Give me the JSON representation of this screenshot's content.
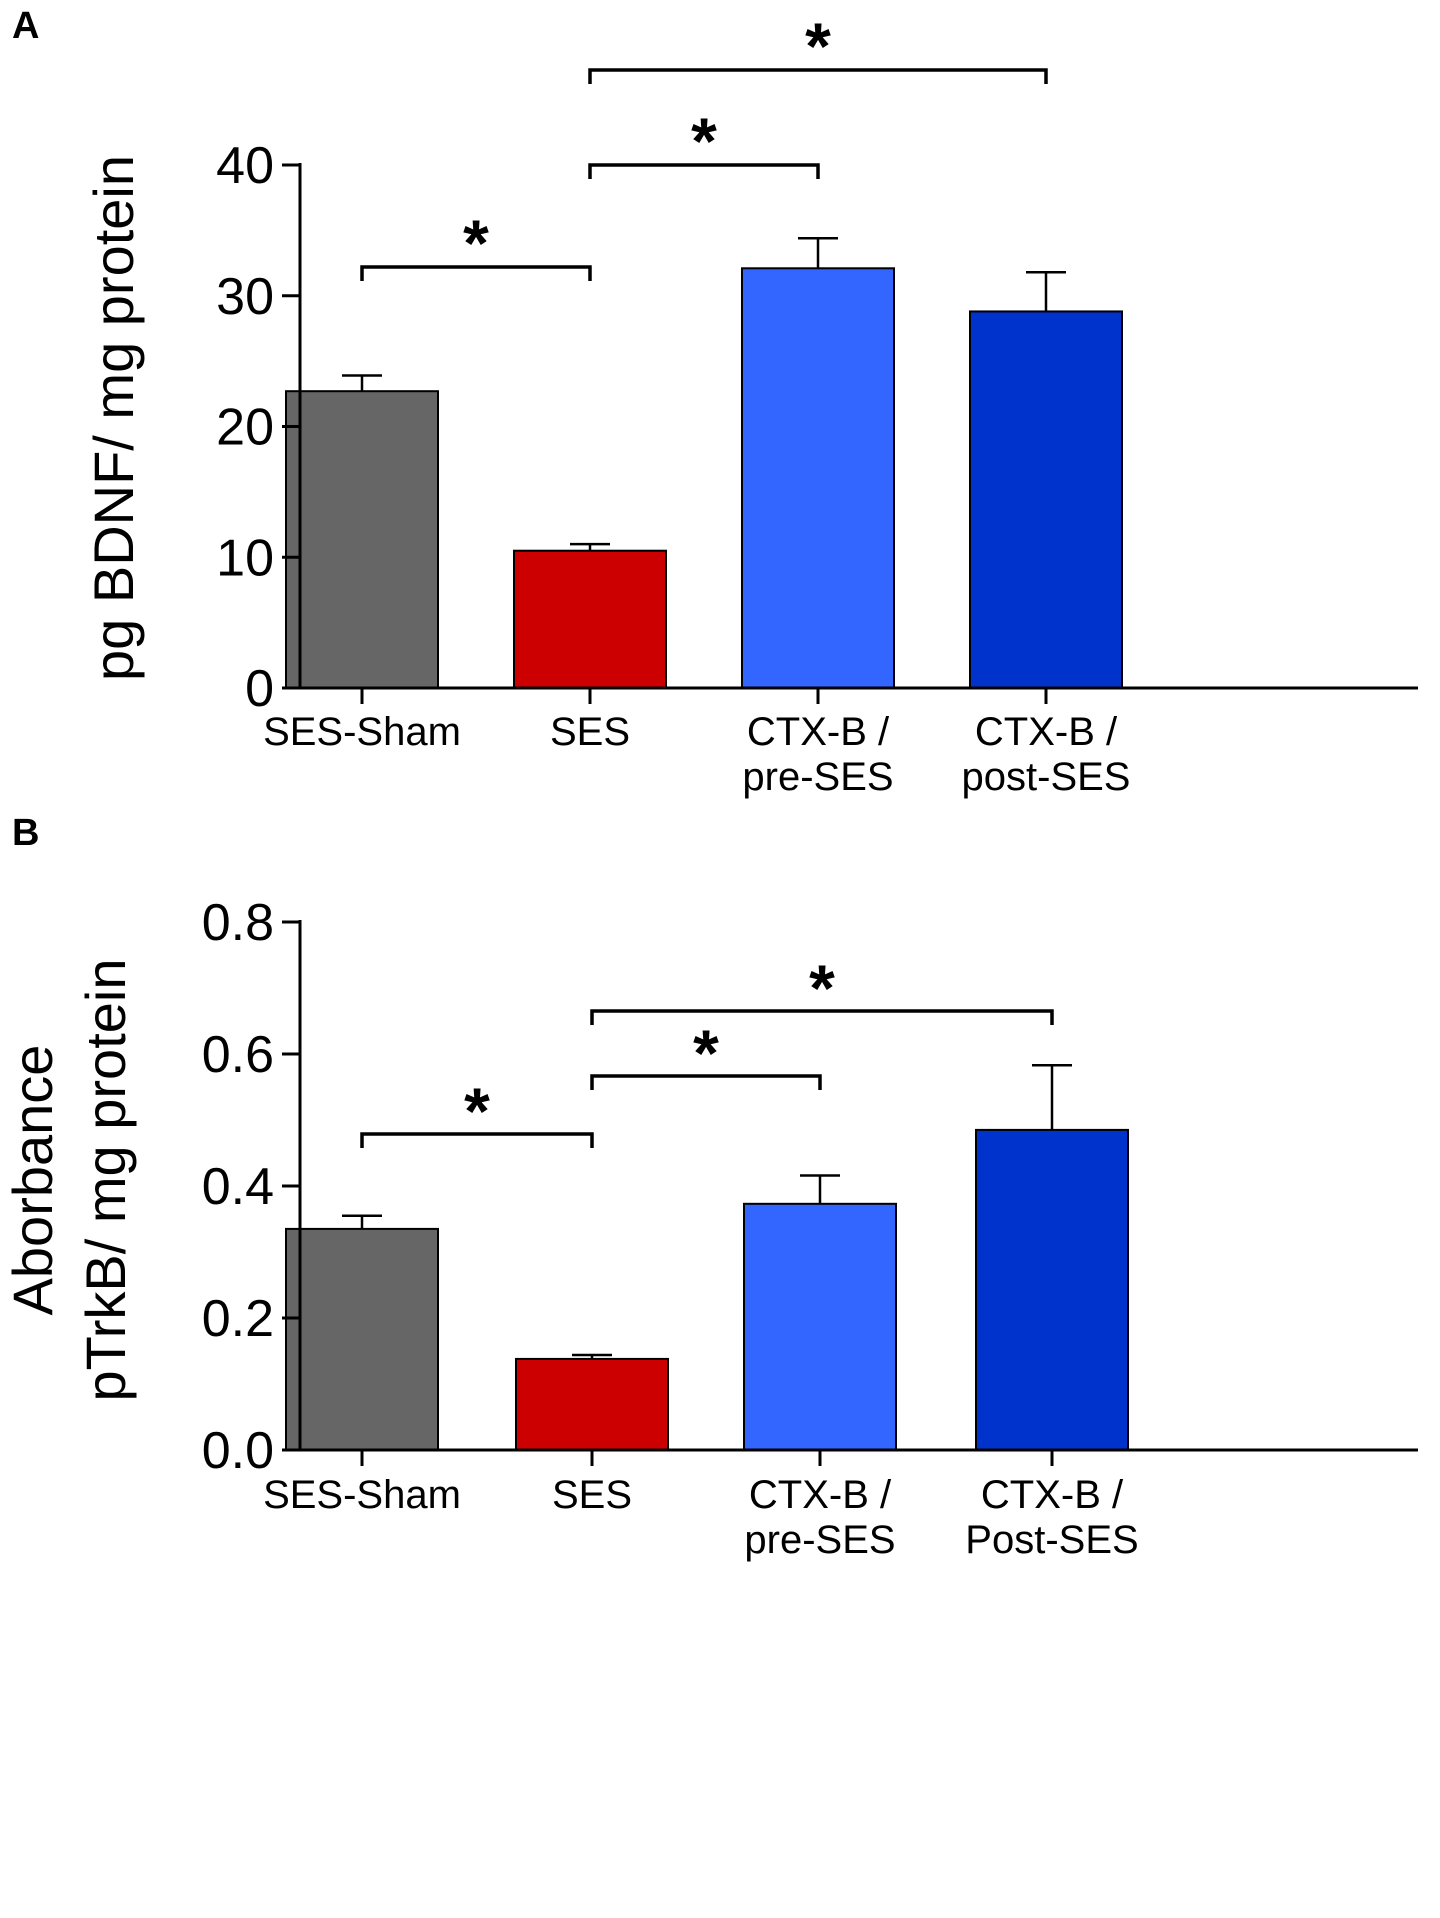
{
  "chart_data": [
    {
      "type": "bar",
      "panel": "A",
      "categories": [
        "SES-Sham",
        "SES",
        "CTX-B /\npre-SES",
        "CTX-B /\npost-SES"
      ],
      "values": [
        22.7,
        10.5,
        32.1,
        28.8
      ],
      "errors": [
        1.2,
        0.5,
        2.3,
        3.0
      ],
      "colors": [
        "#666666",
        "#cc0000",
        "#3366ff",
        "#0033cc"
      ],
      "ylabel": "pg BDNF/ mg protein",
      "xlabel": "",
      "ylim": [
        0,
        40
      ],
      "yticks": [
        "0",
        "10",
        "20",
        "30",
        "40"
      ],
      "significance": [
        {
          "from": 0,
          "to": 1,
          "label": "*"
        },
        {
          "from": 1,
          "to": 2,
          "label": "*"
        },
        {
          "from": 1,
          "to": 3,
          "label": "*"
        }
      ]
    },
    {
      "type": "bar",
      "panel": "B",
      "categories": [
        "SES-Sham",
        "SES",
        "CTX-B /\npre-SES",
        "CTX-B /\nPost-SES"
      ],
      "values": [
        0.335,
        0.138,
        0.373,
        0.485
      ],
      "errors": [
        0.02,
        0.006,
        0.043,
        0.098
      ],
      "colors": [
        "#666666",
        "#cc0000",
        "#3366ff",
        "#0033cc"
      ],
      "ylabel": "Aborbance\npTrkB/ mg protein",
      "xlabel": "",
      "ylim": [
        0,
        0.8
      ],
      "yticks": [
        "0.0",
        "0.2",
        "0.4",
        "0.6",
        "0.8"
      ],
      "significance": [
        {
          "from": 0,
          "to": 1,
          "label": "*"
        },
        {
          "from": 1,
          "to": 2,
          "label": "*"
        },
        {
          "from": 1,
          "to": 3,
          "label": "*"
        }
      ]
    }
  ]
}
